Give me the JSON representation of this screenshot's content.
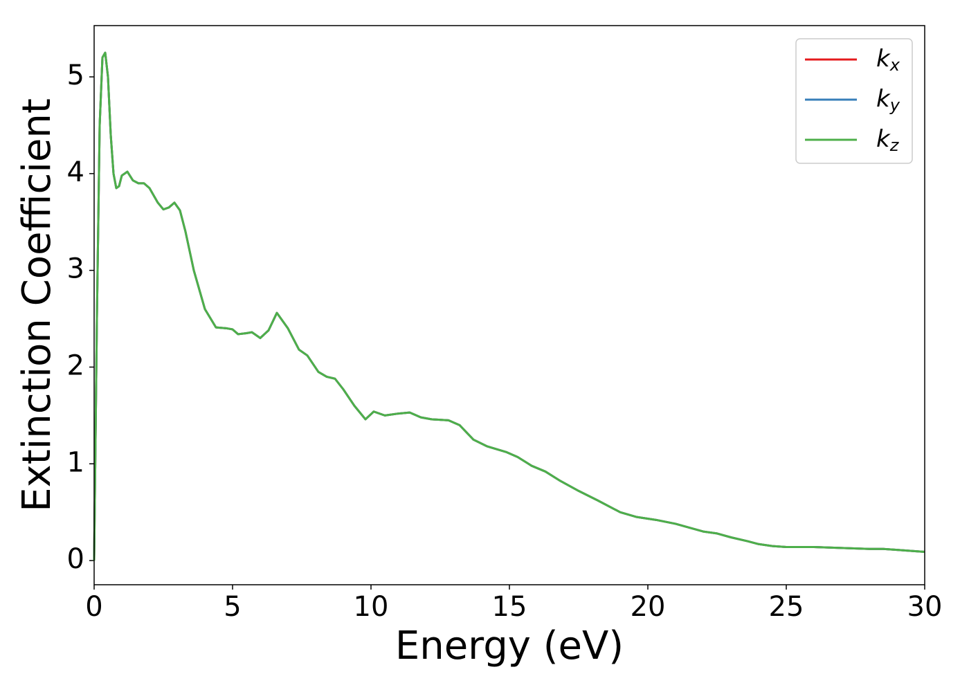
{
  "chart_data": {
    "type": "line",
    "x_label": "Energy (eV)",
    "y_label": "Extinction Coefficient",
    "x": [
      0,
      0.1,
      0.2,
      0.3,
      0.4,
      0.5,
      0.6,
      0.7,
      0.8,
      0.9,
      1.0,
      1.2,
      1.4,
      1.6,
      1.8,
      2.0,
      2.3,
      2.5,
      2.7,
      2.9,
      3.1,
      3.3,
      3.6,
      4.0,
      4.4,
      4.8,
      5.0,
      5.2,
      5.5,
      5.7,
      6.0,
      6.3,
      6.6,
      7.0,
      7.4,
      7.7,
      8.1,
      8.4,
      8.7,
      9.0,
      9.4,
      9.8,
      10.1,
      10.5,
      11.0,
      11.4,
      11.8,
      12.2,
      12.8,
      13.2,
      13.7,
      14.2,
      14.9,
      15.3,
      15.8,
      16.3,
      16.8,
      17.5,
      18.2,
      19.0,
      19.6,
      20.3,
      21.0,
      22.0,
      22.5,
      23.0,
      23.6,
      24.0,
      24.5,
      25.0,
      26.0,
      27.0,
      28.0,
      28.5,
      29.0,
      30
    ],
    "series": [
      {
        "name": "kx",
        "color": "#e41a1c",
        "values": [
          0,
          2.5,
          4.5,
          5.2,
          5.25,
          5.0,
          4.4,
          4.0,
          3.85,
          3.87,
          3.98,
          4.02,
          3.93,
          3.9,
          3.9,
          3.85,
          3.7,
          3.63,
          3.65,
          3.7,
          3.62,
          3.4,
          3.0,
          2.6,
          2.41,
          2.4,
          2.39,
          2.34,
          2.35,
          2.36,
          2.3,
          2.38,
          2.56,
          2.4,
          2.18,
          2.12,
          1.95,
          1.9,
          1.88,
          1.77,
          1.6,
          1.46,
          1.54,
          1.5,
          1.52,
          1.53,
          1.48,
          1.46,
          1.45,
          1.4,
          1.25,
          1.18,
          1.12,
          1.07,
          0.98,
          0.92,
          0.83,
          0.72,
          0.62,
          0.5,
          0.45,
          0.42,
          0.38,
          0.3,
          0.28,
          0.24,
          0.2,
          0.17,
          0.15,
          0.14,
          0.14,
          0.13,
          0.12,
          0.12,
          0.11,
          0.09
        ]
      },
      {
        "name": "ky",
        "color": "#377eb8",
        "values": [
          0,
          2.5,
          4.5,
          5.2,
          5.25,
          5.0,
          4.4,
          4.0,
          3.85,
          3.87,
          3.98,
          4.02,
          3.93,
          3.9,
          3.9,
          3.85,
          3.7,
          3.63,
          3.65,
          3.7,
          3.62,
          3.4,
          3.0,
          2.6,
          2.41,
          2.4,
          2.39,
          2.34,
          2.35,
          2.36,
          2.3,
          2.38,
          2.56,
          2.4,
          2.18,
          2.12,
          1.95,
          1.9,
          1.88,
          1.77,
          1.6,
          1.46,
          1.54,
          1.5,
          1.52,
          1.53,
          1.48,
          1.46,
          1.45,
          1.4,
          1.25,
          1.18,
          1.12,
          1.07,
          0.98,
          0.92,
          0.83,
          0.72,
          0.62,
          0.5,
          0.45,
          0.42,
          0.38,
          0.3,
          0.28,
          0.24,
          0.2,
          0.17,
          0.15,
          0.14,
          0.14,
          0.13,
          0.12,
          0.12,
          0.11,
          0.09
        ]
      },
      {
        "name": "kz",
        "color": "#4daf4a",
        "values": [
          0,
          2.5,
          4.5,
          5.2,
          5.25,
          5.0,
          4.4,
          4.0,
          3.85,
          3.87,
          3.98,
          4.02,
          3.93,
          3.9,
          3.9,
          3.85,
          3.7,
          3.63,
          3.65,
          3.7,
          3.62,
          3.4,
          3.0,
          2.6,
          2.41,
          2.4,
          2.39,
          2.34,
          2.35,
          2.36,
          2.3,
          2.38,
          2.56,
          2.4,
          2.18,
          2.12,
          1.95,
          1.9,
          1.88,
          1.77,
          1.6,
          1.46,
          1.54,
          1.5,
          1.52,
          1.53,
          1.48,
          1.46,
          1.45,
          1.4,
          1.25,
          1.18,
          1.12,
          1.07,
          0.98,
          0.92,
          0.83,
          0.72,
          0.62,
          0.5,
          0.45,
          0.42,
          0.38,
          0.3,
          0.28,
          0.24,
          0.2,
          0.17,
          0.15,
          0.14,
          0.14,
          0.13,
          0.12,
          0.12,
          0.11,
          0.09
        ]
      }
    ],
    "xlim": [
      0,
      30
    ],
    "xticks": [
      0,
      5,
      10,
      15,
      20,
      25,
      30
    ],
    "ylim": [
      -0.25,
      5.53
    ],
    "yticks": [
      0,
      1,
      2,
      3,
      4,
      5
    ],
    "grid": false,
    "legend": "upper right"
  }
}
